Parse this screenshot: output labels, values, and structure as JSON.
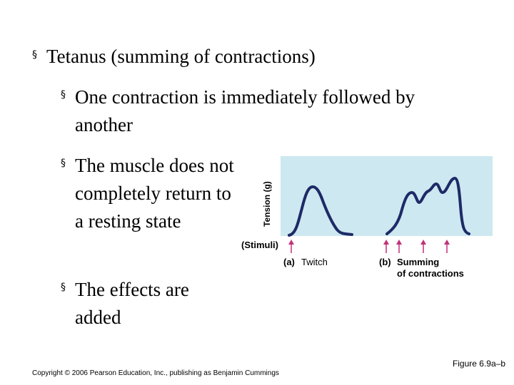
{
  "bullets": [
    {
      "text": "Tetanus (summing of contractions)"
    },
    {
      "text": "One contraction is immediately followed by another"
    },
    {
      "text": "The muscle does not completely return to a resting state"
    },
    {
      "text": "The effects are added"
    }
  ],
  "bullet_symbol": "§",
  "figure": {
    "y_axis_label": "Tension (g)",
    "stimuli_label": "(Stimuli)",
    "panel_a": {
      "letter": "(a)",
      "caption": "Twitch"
    },
    "panel_b": {
      "letter": "(b)",
      "caption_line1": "Summing",
      "caption_line2": "of contractions"
    },
    "colors": {
      "background": "#cde8f0",
      "curve": "#1e2a66",
      "arrow": "#c0307a"
    }
  },
  "footer": {
    "copyright": "Copyright © 2006 Pearson Education, Inc., publishing as Benjamin Cummings",
    "figure_ref": "Figure 6.9a–b"
  }
}
